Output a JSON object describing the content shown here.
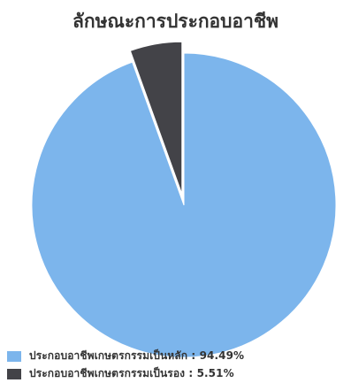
{
  "chart_data": {
    "type": "pie",
    "title": "ลักษณะการประกอบอาชีพ",
    "series": [
      {
        "name": "ประกอบอาชีพเกษตรกรรมเป็นหลัก",
        "value": 94.49,
        "color": "#7cb5ec"
      },
      {
        "name": "ประกอบอาชีพเกษตรกรรมเป็นรอง",
        "value": 5.51,
        "color": "#434348"
      }
    ],
    "exploded_slice": "ประกอบอาชีพเกษตรกรรมเป็นรอง",
    "legend_position": "bottom-left",
    "legend_labels": [
      "ประกอบอาชีพเกษตรกรรมเป็นหลัก : 94.49%",
      "ประกอบอาชีพเกษตรกรรมเป็นรอง : 5.51%"
    ]
  }
}
